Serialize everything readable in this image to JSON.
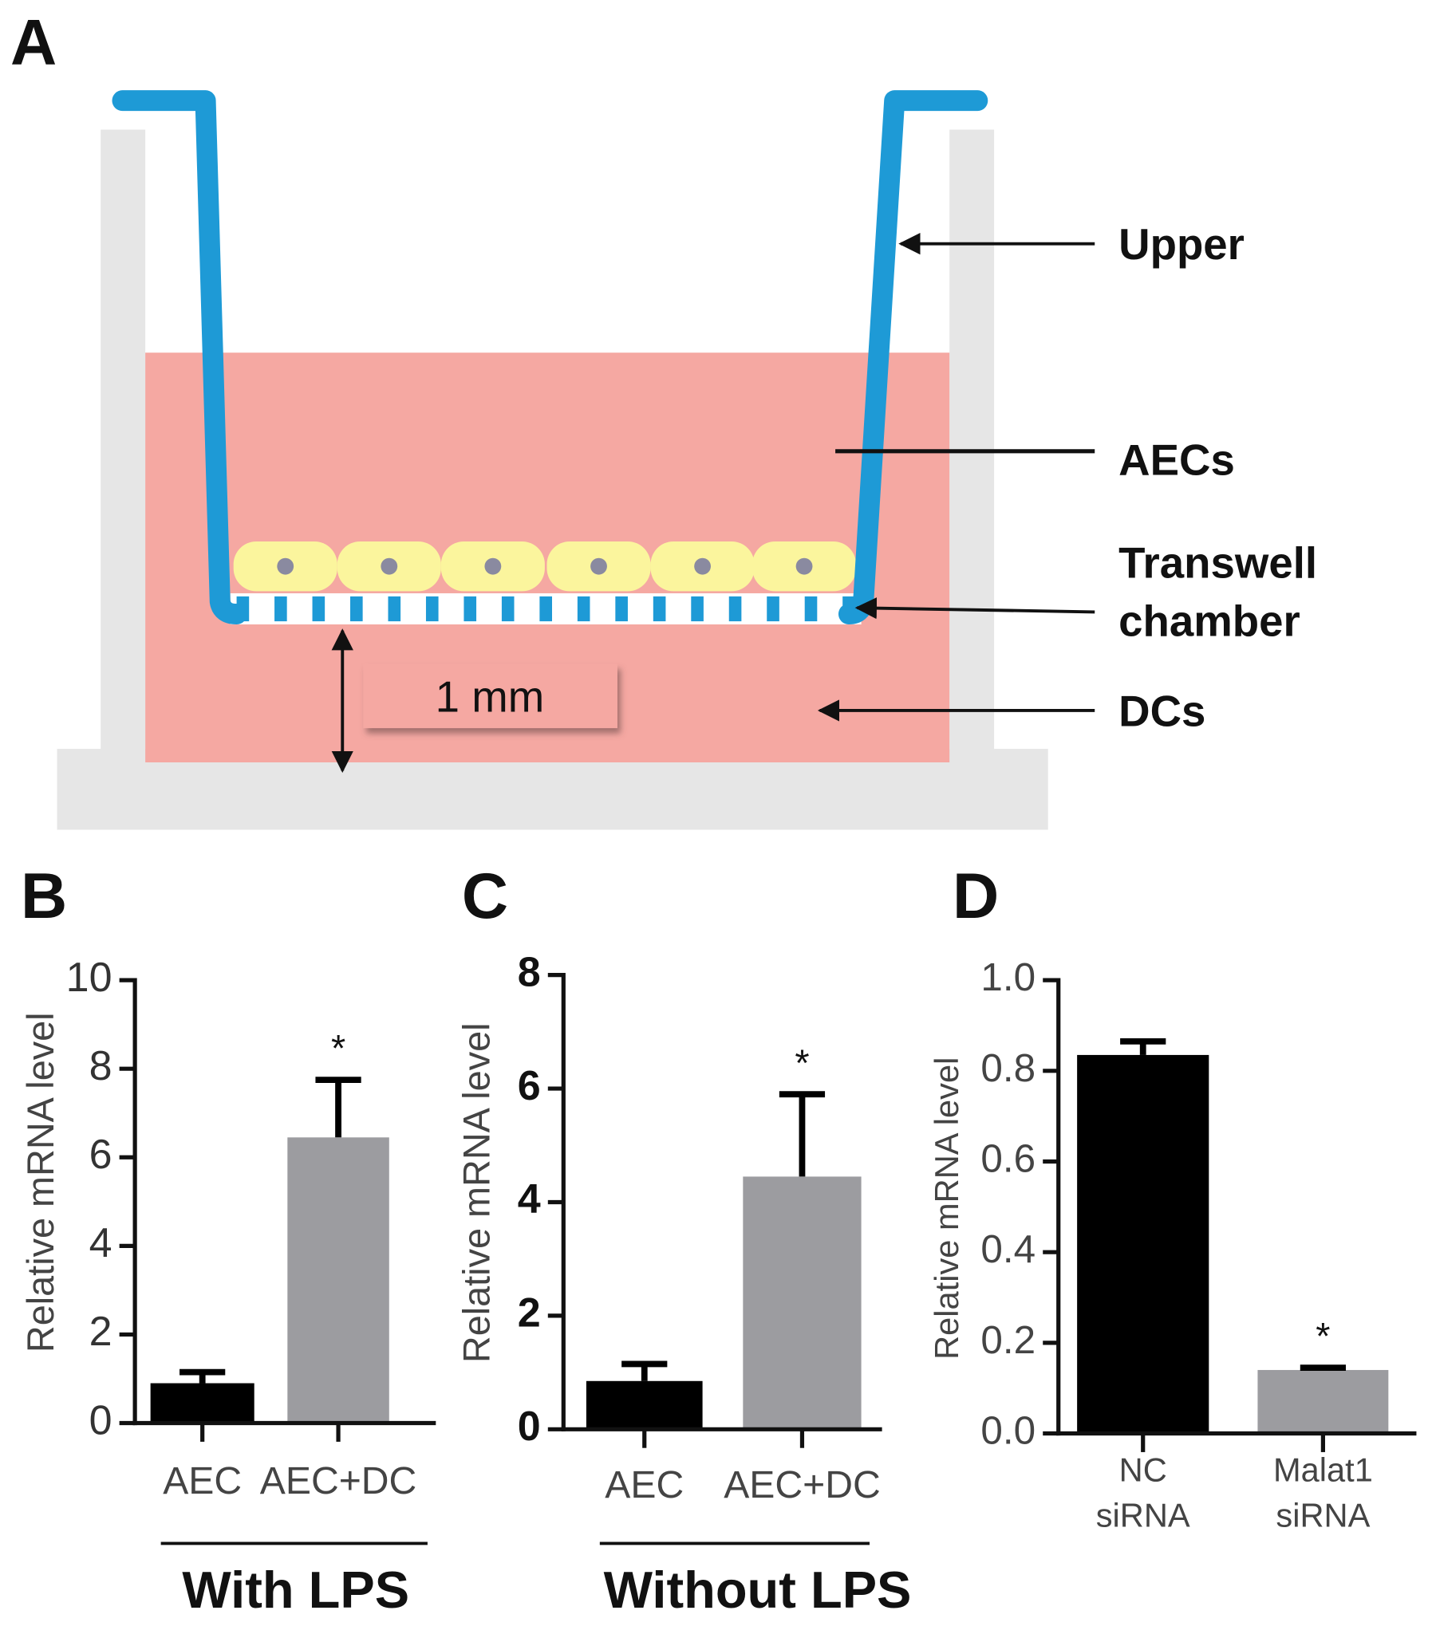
{
  "diagram": {
    "panel": "A",
    "upper": "Upper",
    "aecs": "AECs",
    "chamber": "Transwell\nchamber",
    "dcs": "DCs",
    "scale": "1 mm"
  },
  "chart_data": [
    {
      "type": "bar",
      "panel": "B",
      "ylabel": "Relative mRNA level",
      "categories": [
        "AEC",
        "AEC+DC"
      ],
      "values": [
        0.9,
        6.45
      ],
      "errors": [
        0.25,
        1.3
      ],
      "colors": [
        "#000000",
        "#9c9ca0"
      ],
      "significance": [
        null,
        "*"
      ],
      "ylim": [
        0,
        10
      ],
      "yticks": [
        0,
        2,
        4,
        6,
        8,
        10
      ],
      "group_label": "With LPS"
    },
    {
      "type": "bar",
      "panel": "C",
      "ylabel": "Relative mRNA level",
      "categories": [
        "AEC",
        "AEC+DC"
      ],
      "values": [
        0.85,
        4.45
      ],
      "errors": [
        0.3,
        1.45
      ],
      "colors": [
        "#000000",
        "#9c9ca0"
      ],
      "significance": [
        null,
        "*"
      ],
      "ylim": [
        0,
        8
      ],
      "yticks": [
        0,
        2,
        4,
        6,
        8
      ],
      "group_label": "Without LPS"
    },
    {
      "type": "bar",
      "panel": "D",
      "ylabel": "Relative mRNA level",
      "categories": [
        "NC\nsiRNA",
        "Malat1\nsiRNA"
      ],
      "values": [
        0.835,
        0.14
      ],
      "errors": [
        0.03,
        0.005
      ],
      "colors": [
        "#000000",
        "#9c9ca0"
      ],
      "significance": [
        null,
        "*"
      ],
      "ylim": [
        0,
        1
      ],
      "yticks": [
        {
          "value": 0,
          "label": "0.0"
        },
        0.2,
        0.4,
        0.6,
        0.8,
        {
          "value": 1,
          "label": "1.0"
        }
      ]
    }
  ]
}
